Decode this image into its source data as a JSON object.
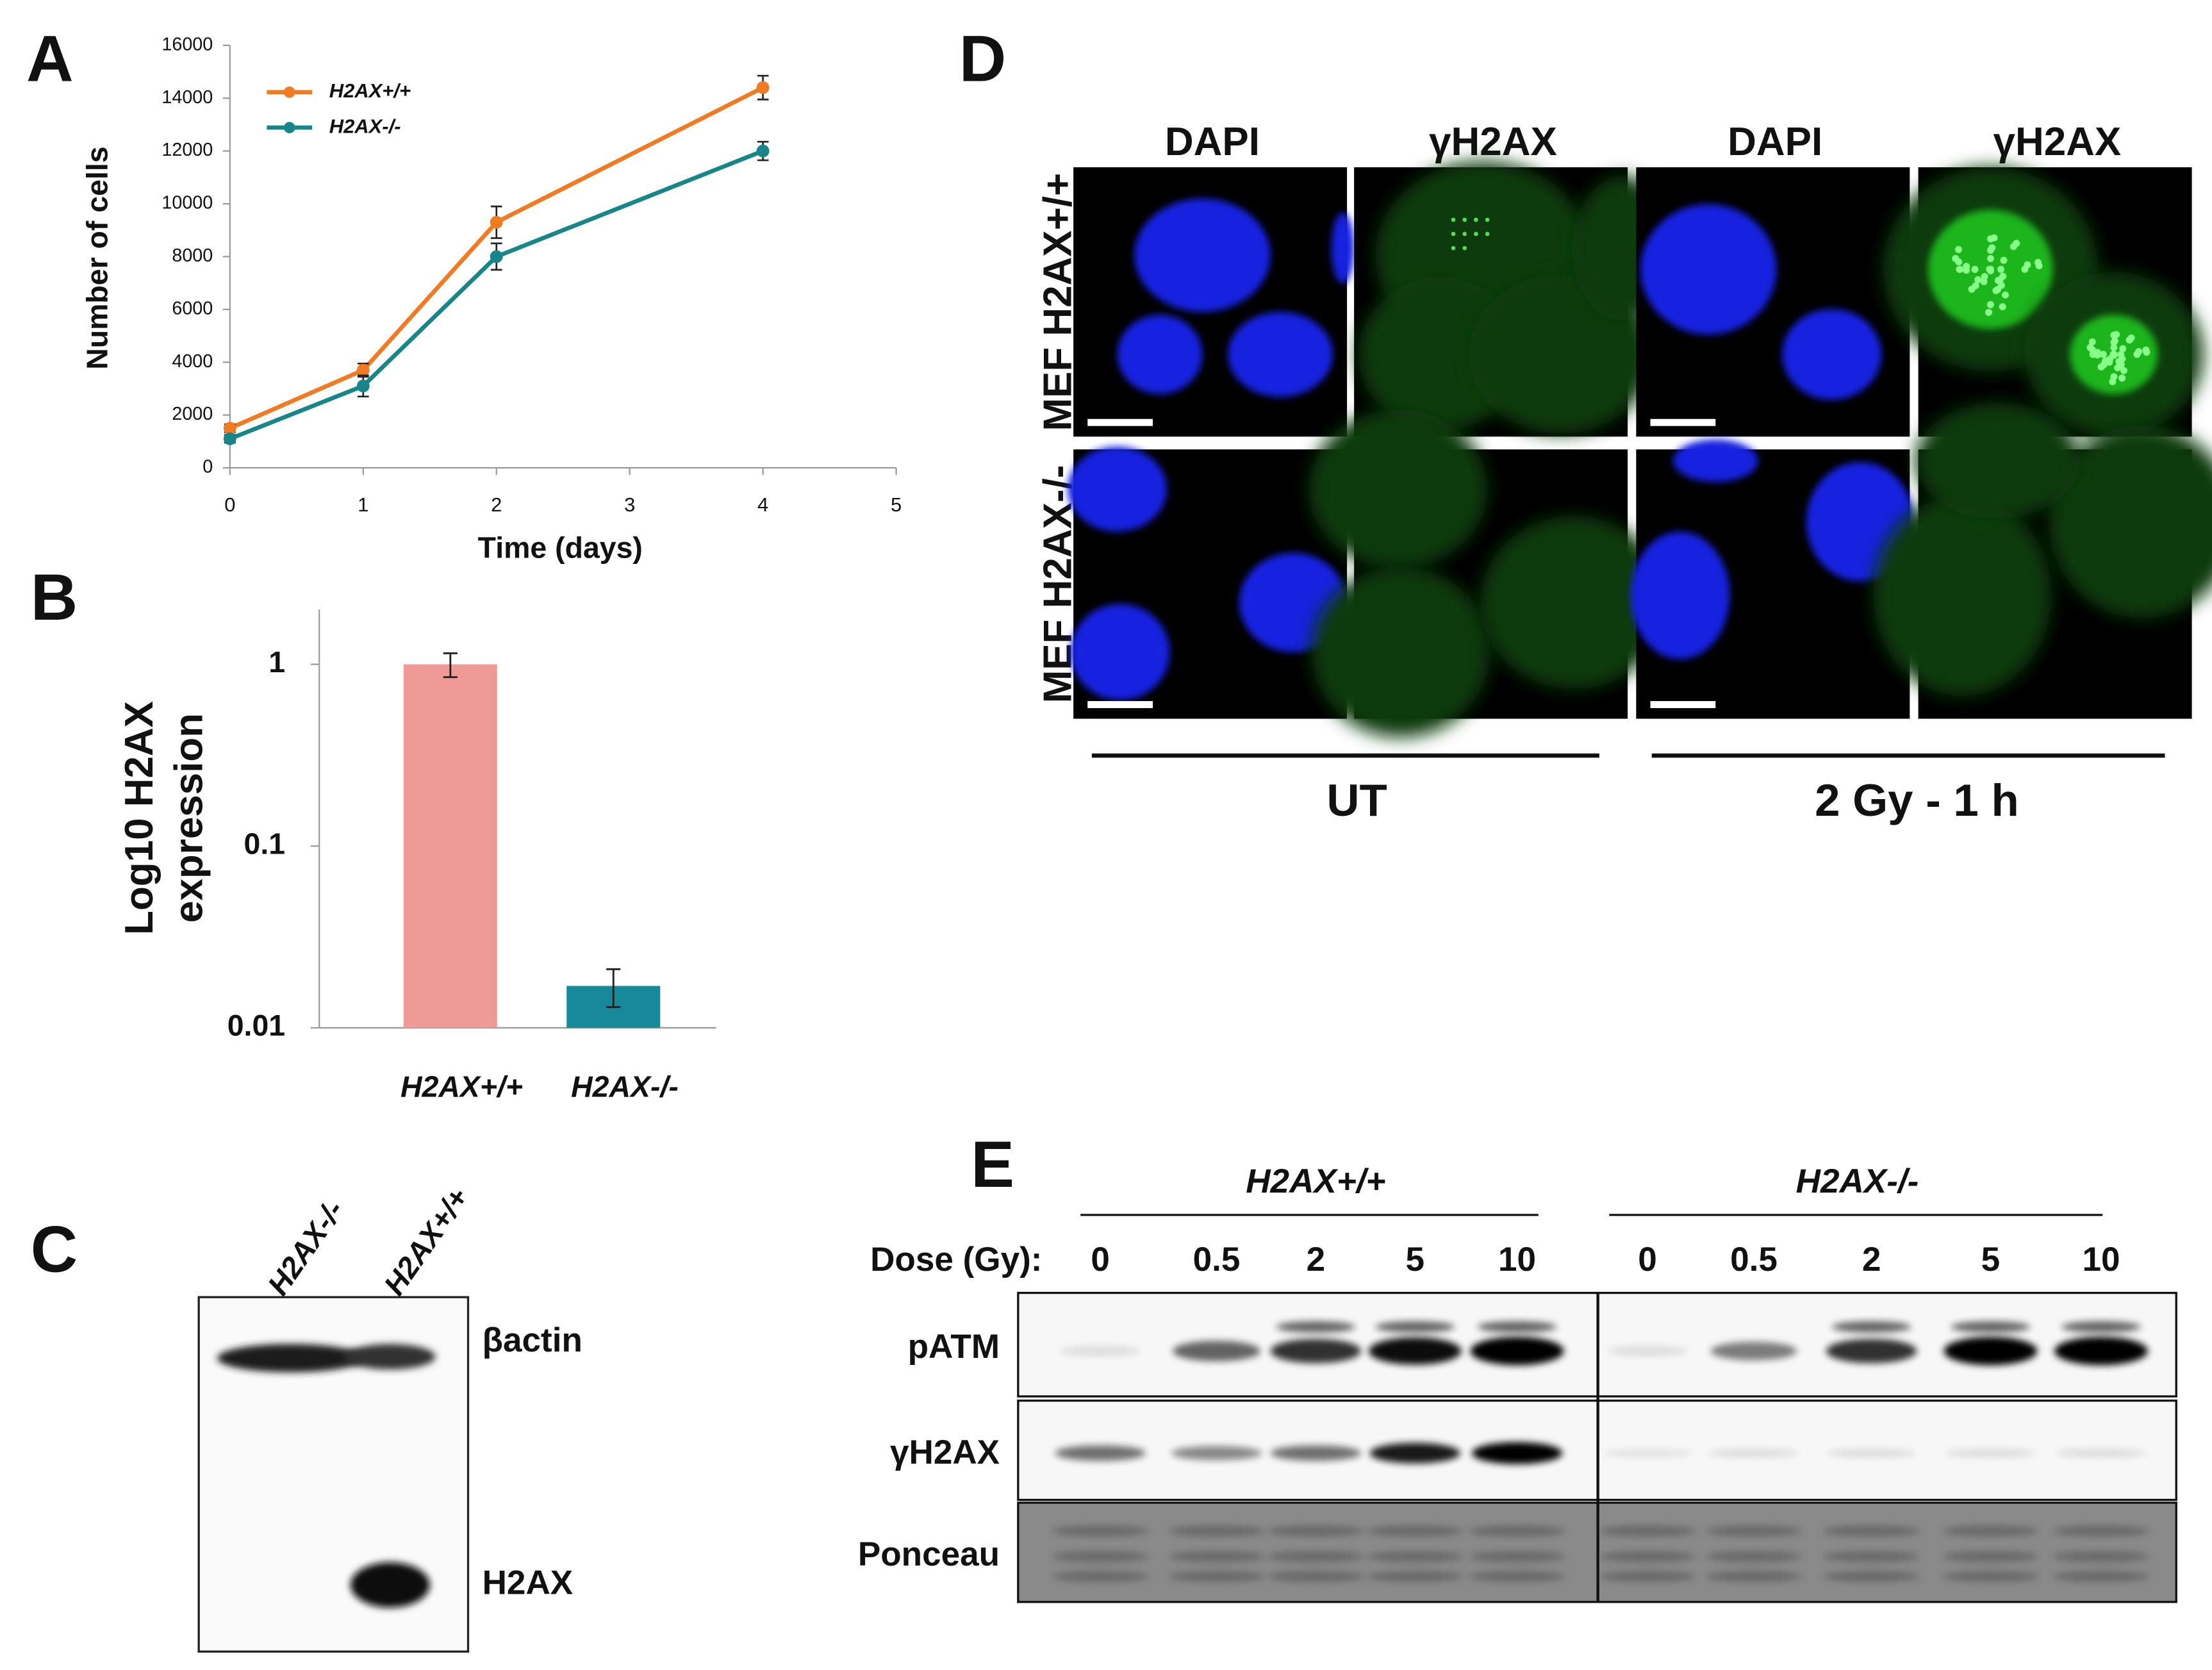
{
  "panel_labels": [
    "A",
    "B",
    "C",
    "D",
    "E"
  ],
  "chart_data": [
    {
      "type": "line",
      "xlabel": "Time (days)",
      "ylabel": "Number of cells",
      "x": [
        0,
        1,
        2,
        4
      ],
      "xlim": [
        0,
        5
      ],
      "xticks": [
        0,
        1,
        2,
        3,
        4,
        5
      ],
      "ylim": [
        0,
        16000
      ],
      "yticks": [
        0,
        2000,
        4000,
        6000,
        8000,
        10000,
        12000,
        14000,
        16000
      ],
      "series": [
        {
          "name": "H2AX+/+",
          "color": "#f07b22",
          "values": [
            1500,
            3700,
            9300,
            14400
          ],
          "errors": [
            150,
            250,
            600,
            450
          ]
        },
        {
          "name": "H2AX-/-",
          "color": "#16868a",
          "values": [
            1100,
            3100,
            8000,
            12000
          ],
          "errors": [
            150,
            400,
            500,
            350
          ]
        }
      ]
    },
    {
      "type": "bar",
      "ylabel": [
        "Log10 H2AX",
        "expression"
      ],
      "log_scale": true,
      "categories": [
        "H2AX+/+",
        "H2AX-/-"
      ],
      "values": [
        1,
        0.017
      ],
      "errors": [
        0.15,
        0.004
      ],
      "colors": [
        "#f09a97",
        "#16899a"
      ],
      "ylim": [
        0.01,
        2
      ],
      "yticks": [
        0.01,
        0.1,
        1
      ]
    }
  ],
  "blot_c": {
    "lanes": [
      "H2AX-/-",
      "H2AX+/+"
    ],
    "bands": [
      "βactin",
      "H2AX"
    ]
  },
  "microscopy_d": {
    "columns": [
      "DAPI",
      "γH2AX",
      "DAPI",
      "γH2AX"
    ],
    "rows": [
      "MEF H2AX+/+",
      "MEF H2AX-/-"
    ],
    "groups": [
      "UT",
      "2 Gy - 1 h"
    ]
  },
  "western_e": {
    "groups": [
      "H2AX+/+",
      "H2AX-/-"
    ],
    "dose_label": "Dose (Gy):",
    "doses": [
      [
        0,
        0.5,
        2,
        5,
        10
      ],
      [
        0,
        0.5,
        2,
        5,
        10
      ]
    ],
    "rows": [
      "pATM",
      "γH2AX",
      "Ponceau"
    ]
  }
}
